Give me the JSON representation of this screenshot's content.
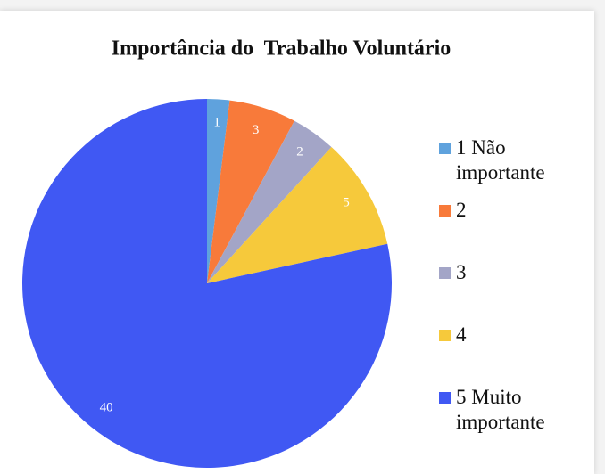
{
  "chart_data": {
    "type": "pie",
    "title": "Importância do  Trabalho Voluntário",
    "categories": [
      "1 Não importante",
      "2",
      "3",
      "4",
      "5 Muito importante"
    ],
    "values": [
      1,
      3,
      2,
      5,
      40
    ],
    "colors": [
      "#5fa2dd",
      "#f87a3a",
      "#a3a5c7",
      "#f6c93b",
      "#4058f3"
    ],
    "legend": "right"
  }
}
